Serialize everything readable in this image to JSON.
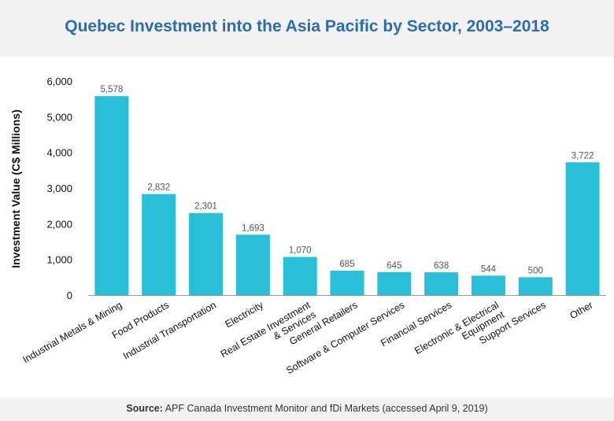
{
  "title": "Quebec Investment into the Asia Pacific by Sector, 2003–2018",
  "source": {
    "label": "Source:",
    "text": "APF Canada Investment Monitor and fDi Markets (accessed April 9, 2019)"
  },
  "chart_data": {
    "type": "bar",
    "title": "Quebec Investment into the Asia Pacific by Sector, 2003–2018",
    "xlabel": "",
    "ylabel": "Investment Value (C$ Millions)",
    "ylim": [
      0,
      6000
    ],
    "yticks": [
      0,
      1000,
      2000,
      3000,
      4000,
      5000,
      6000
    ],
    "ytick_labels": [
      "0",
      "1,000",
      "2,000",
      "3,000",
      "4,000",
      "5,000",
      "6,000"
    ],
    "categories": [
      [
        "Industrial Metals & Mining"
      ],
      [
        "Food Products"
      ],
      [
        "Industrial Transportation"
      ],
      [
        "Electricity"
      ],
      [
        "Real Estate Investment",
        "& Services"
      ],
      [
        "General Retailers"
      ],
      [
        "Software & Computer Services"
      ],
      [
        "Financial Services"
      ],
      [
        "Electronic & Electrical",
        "Equipment"
      ],
      [
        "Support Services"
      ],
      [
        "Other"
      ]
    ],
    "values": [
      5578,
      2832,
      2301,
      1693,
      1070,
      685,
      645,
      638,
      544,
      500,
      3722
    ],
    "value_labels": [
      "5,578",
      "2,832",
      "2,301",
      "1,693",
      "1,070",
      "685",
      "645",
      "638",
      "544",
      "500",
      "3,722"
    ],
    "bar_color": "#29bfd9",
    "axis_color": "#999999",
    "grid": false,
    "legend": "none"
  }
}
